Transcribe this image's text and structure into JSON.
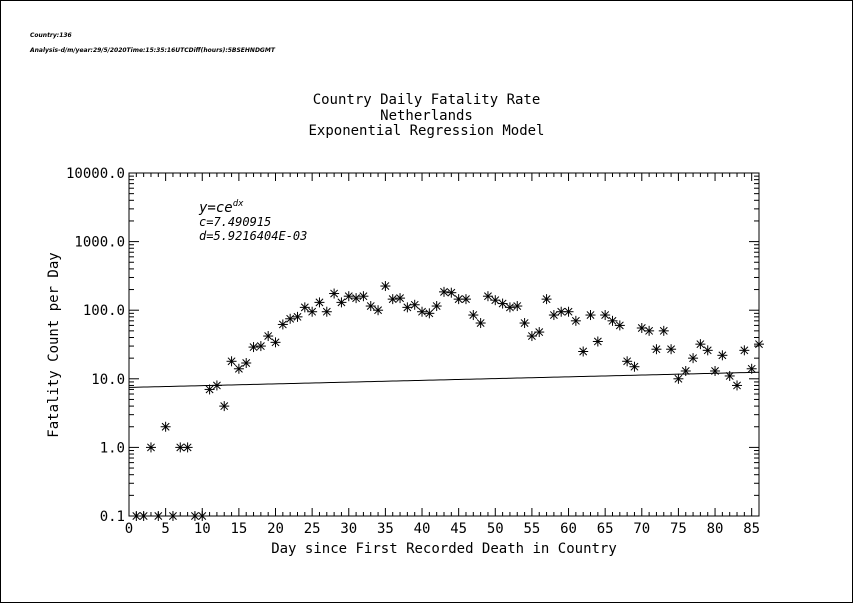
{
  "header": {
    "line1": "Country:136",
    "line2": "Analysis-d/m/year:29/5/2020Time:15:35:16UTCDiff(hours):5BSEHNDGMT"
  },
  "chart_data": {
    "type": "scatter",
    "title": "Country Daily Fatality Rate",
    "subtitle": "Netherlands",
    "model": "Exponential Regression Model",
    "xlabel": "Day since First Recorded Death in Country",
    "ylabel": "Fatality Count per Day",
    "xlim": [
      0,
      86
    ],
    "ylim": [
      0.1,
      10000
    ],
    "yscale": "log",
    "x_ticks": [
      0,
      5,
      10,
      15,
      20,
      25,
      30,
      35,
      40,
      45,
      50,
      55,
      60,
      65,
      70,
      75,
      80,
      85
    ],
    "y_ticks": [
      {
        "value": 0.1,
        "label": "0.1"
      },
      {
        "value": 1,
        "label": "1.0"
      },
      {
        "value": 10,
        "label": "10.0"
      },
      {
        "value": 100,
        "label": "100.0"
      },
      {
        "value": 1000,
        "label": "1000.0"
      },
      {
        "value": 10000,
        "label": "10000.0"
      }
    ],
    "grid": false,
    "equation": {
      "line1": "y=ce",
      "line1_sup": "dx",
      "c_label": "c=7.490915",
      "d_label": "d=5.9216404E-03"
    },
    "fit": {
      "c": 7.490915,
      "d": 0.0059216404
    },
    "points": [
      [
        1,
        0.1
      ],
      [
        2,
        0.1
      ],
      [
        3,
        1
      ],
      [
        4,
        0.1
      ],
      [
        5,
        2
      ],
      [
        6,
        0.1
      ],
      [
        7,
        1
      ],
      [
        8,
        1
      ],
      [
        9,
        0.1
      ],
      [
        10,
        0.1
      ],
      [
        11,
        7
      ],
      [
        12,
        8
      ],
      [
        13,
        4
      ],
      [
        14,
        18
      ],
      [
        15,
        14
      ],
      [
        16,
        17
      ],
      [
        17,
        29
      ],
      [
        18,
        30
      ],
      [
        19,
        42
      ],
      [
        20,
        34
      ],
      [
        21,
        62
      ],
      [
        22,
        75
      ],
      [
        23,
        80
      ],
      [
        24,
        110
      ],
      [
        25,
        95
      ],
      [
        26,
        130
      ],
      [
        27,
        95
      ],
      [
        28,
        175
      ],
      [
        29,
        130
      ],
      [
        30,
        160
      ],
      [
        31,
        150
      ],
      [
        32,
        160
      ],
      [
        33,
        115
      ],
      [
        34,
        100
      ],
      [
        35,
        225
      ],
      [
        36,
        145
      ],
      [
        37,
        150
      ],
      [
        38,
        110
      ],
      [
        39,
        120
      ],
      [
        40,
        95
      ],
      [
        41,
        90
      ],
      [
        42,
        115
      ],
      [
        43,
        185
      ],
      [
        44,
        180
      ],
      [
        45,
        145
      ],
      [
        46,
        145
      ],
      [
        47,
        85
      ],
      [
        48,
        65
      ],
      [
        49,
        160
      ],
      [
        50,
        140
      ],
      [
        51,
        125
      ],
      [
        52,
        110
      ],
      [
        53,
        115
      ],
      [
        54,
        65
      ],
      [
        55,
        42
      ],
      [
        56,
        48
      ],
      [
        57,
        145
      ],
      [
        58,
        85
      ],
      [
        59,
        95
      ],
      [
        60,
        95
      ],
      [
        61,
        70
      ],
      [
        62,
        25
      ],
      [
        63,
        85
      ],
      [
        64,
        35
      ],
      [
        65,
        85
      ],
      [
        66,
        70
      ],
      [
        67,
        60
      ],
      [
        68,
        18
      ],
      [
        69,
        15
      ],
      [
        70,
        55
      ],
      [
        71,
        50
      ],
      [
        72,
        27
      ],
      [
        73,
        50
      ],
      [
        74,
        27
      ],
      [
        75,
        10
      ],
      [
        76,
        13
      ],
      [
        77,
        20
      ],
      [
        78,
        32
      ],
      [
        79,
        26
      ],
      [
        80,
        13
      ],
      [
        81,
        22
      ],
      [
        82,
        11
      ],
      [
        83,
        8
      ],
      [
        84,
        26
      ],
      [
        85,
        14
      ],
      [
        86,
        32
      ]
    ]
  }
}
